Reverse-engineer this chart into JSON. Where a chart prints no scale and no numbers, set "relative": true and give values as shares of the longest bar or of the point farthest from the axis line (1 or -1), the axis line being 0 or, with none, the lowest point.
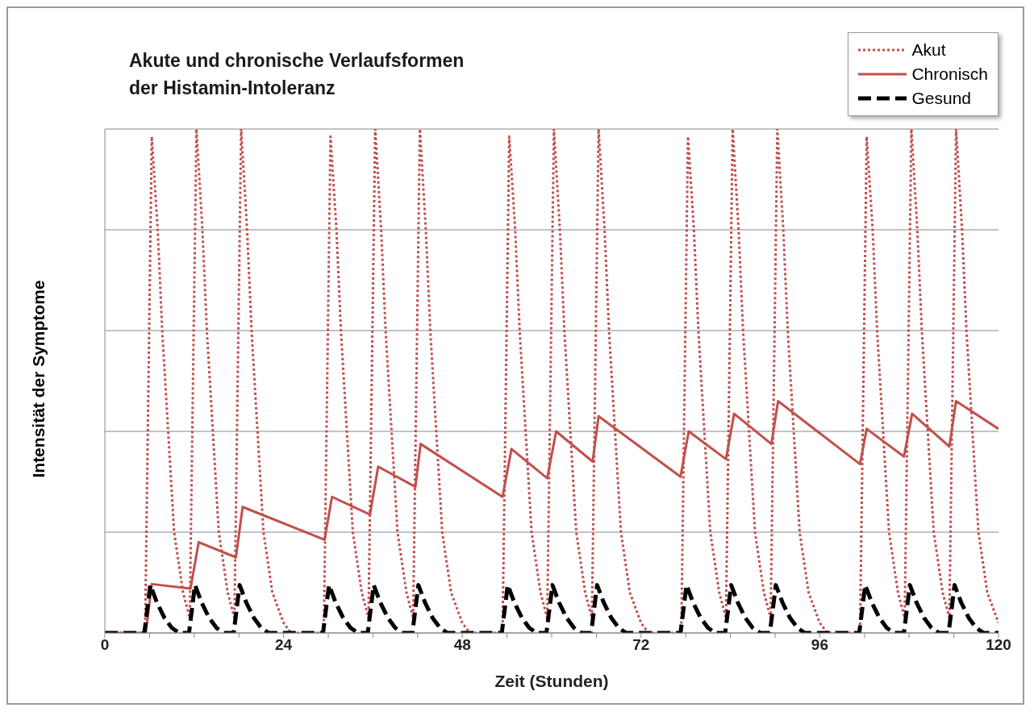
{
  "chart_data": {
    "type": "line",
    "title": "Akute und chronische Verlaufsformen der Histamin-Intoleranz",
    "xlabel": "Zeit (Stunden)",
    "ylabel": "Intensität der Symptome",
    "relative": true,
    "grid": "y",
    "legend": "top right",
    "xlim": [
      0,
      120
    ],
    "xticks": [
      0,
      {
        "value": 6,
        "label": null
      },
      {
        "value": 12,
        "label": null
      },
      {
        "value": 18,
        "label": null
      },
      24,
      {
        "value": 30,
        "label": null
      },
      {
        "value": 36,
        "label": null
      },
      {
        "value": 42,
        "label": null
      },
      48,
      {
        "value": 54,
        "label": null
      },
      {
        "value": 60,
        "label": null
      },
      {
        "value": 66,
        "label": null
      },
      72,
      {
        "value": 78,
        "label": null
      },
      {
        "value": 84,
        "label": null
      },
      {
        "value": 90,
        "label": null
      },
      96,
      {
        "value": 102,
        "label": null
      },
      {
        "value": 108,
        "label": null
      },
      {
        "value": 114,
        "label": null
      },
      120
    ],
    "series": [
      {
        "name": "Akut",
        "color": "#c0504d",
        "line_style": "dotted",
        "x": [
          0,
          5.4,
          6.3,
          7.1,
          7.7,
          8.5,
          9.3,
          10.5,
          11.4,
          12.3,
          13.1,
          13.7,
          14.5,
          15.3,
          16.5,
          17.4,
          18.3,
          19.1,
          19.7,
          20.5,
          21.3,
          22.5,
          24,
          25,
          29.4,
          30.3,
          31.1,
          31.7,
          32.5,
          33.3,
          34.5,
          35.4,
          36.3,
          37.1,
          37.7,
          38.5,
          39.3,
          40.5,
          41.4,
          42.3,
          43.1,
          43.7,
          44.5,
          45.3,
          46.5,
          48,
          49,
          53.4,
          54.3,
          55.1,
          55.7,
          56.5,
          57.3,
          58.5,
          59.4,
          60.3,
          61.1,
          61.7,
          62.5,
          63.3,
          64.5,
          65.4,
          66.3,
          67.1,
          67.7,
          68.5,
          69.3,
          70.5,
          72,
          73,
          77.4,
          78.3,
          79.1,
          79.7,
          80.5,
          81.3,
          82.5,
          83.4,
          84.3,
          85.1,
          85.7,
          86.5,
          87.3,
          88.5,
          89.4,
          90.3,
          91.1,
          91.7,
          92.5,
          93.3,
          94.5,
          96,
          97,
          101.4,
          102.3,
          103.1,
          103.7,
          104.5,
          105.3,
          106.5,
          107.4,
          108.3,
          109.1,
          109.7,
          110.5,
          111.3,
          112.5,
          113.4,
          114.3,
          115.1,
          115.7,
          116.5,
          117.3,
          118.5,
          120
        ],
        "values": [
          0,
          0,
          0.985,
          0.8,
          0.6,
          0.4,
          0.2,
          0.08,
          0.03,
          1,
          0.8,
          0.6,
          0.4,
          0.2,
          0.08,
          0.03,
          1,
          0.8,
          0.6,
          0.4,
          0.2,
          0.08,
          0.02,
          0,
          0,
          0.985,
          0.8,
          0.6,
          0.4,
          0.2,
          0.08,
          0.03,
          1,
          0.8,
          0.6,
          0.4,
          0.2,
          0.08,
          0.03,
          1,
          0.8,
          0.6,
          0.4,
          0.2,
          0.08,
          0.02,
          0,
          0,
          0.985,
          0.8,
          0.6,
          0.4,
          0.2,
          0.08,
          0.03,
          1,
          0.8,
          0.6,
          0.4,
          0.2,
          0.08,
          0.03,
          1,
          0.8,
          0.6,
          0.4,
          0.2,
          0.08,
          0.02,
          0,
          0,
          0.985,
          0.8,
          0.6,
          0.4,
          0.2,
          0.08,
          0.03,
          1,
          0.8,
          0.6,
          0.4,
          0.2,
          0.08,
          0.03,
          1,
          0.8,
          0.6,
          0.4,
          0.2,
          0.08,
          0.02,
          0,
          0,
          0.985,
          0.8,
          0.6,
          0.4,
          0.2,
          0.08,
          0.03,
          1,
          0.8,
          0.6,
          0.4,
          0.2,
          0.08,
          0.03,
          1,
          0.8,
          0.6,
          0.4,
          0.2,
          0.08,
          0.02
        ]
      },
      {
        "name": "Chronisch",
        "color": "#c0504d",
        "line_style": "solid",
        "x": [
          0,
          5.5,
          6.3,
          11.5,
          12.6,
          17.6,
          18.5,
          29.5,
          30.5,
          35.6,
          36.7,
          41.7,
          42.4,
          53.4,
          54.6,
          59.4,
          60.6,
          65.5,
          66.3,
          77.3,
          78.4,
          83.4,
          84.5,
          89.5,
          90.4,
          101.4,
          102.3,
          107.3,
          108.4,
          113.4,
          114.3,
          120
        ],
        "values": [
          0,
          0,
          0.097,
          0.088,
          0.18,
          0.15,
          0.25,
          0.185,
          0.27,
          0.235,
          0.33,
          0.29,
          0.375,
          0.27,
          0.365,
          0.307,
          0.4,
          0.34,
          0.43,
          0.31,
          0.4,
          0.345,
          0.435,
          0.375,
          0.46,
          0.335,
          0.405,
          0.35,
          0.435,
          0.37,
          0.46,
          0.405
        ]
      },
      {
        "name": "Gesund",
        "color": "#000000",
        "line_style": "dashed",
        "x": [
          0,
          5.3,
          6.1,
          7,
          8,
          9,
          10,
          11.3,
          12.1,
          13,
          14,
          15,
          16,
          17.3,
          18.1,
          19,
          20,
          21,
          22,
          29.3,
          30.1,
          31,
          32,
          33,
          34,
          35.3,
          36.1,
          37,
          38,
          39,
          40,
          41.3,
          42.1,
          43,
          44,
          45,
          46,
          53.3,
          54.1,
          55,
          56,
          57,
          58,
          59.3,
          60.1,
          61,
          62,
          63,
          64,
          65.3,
          66.1,
          67,
          68,
          69,
          70,
          77.3,
          78.1,
          79,
          80,
          81,
          82,
          83.3,
          84.1,
          85,
          86,
          87,
          88,
          89.3,
          90.1,
          91,
          92,
          93,
          94,
          101.3,
          102.1,
          103,
          104,
          105,
          106,
          107.3,
          108.1,
          109,
          110,
          111,
          112,
          113.3,
          114.1,
          115,
          116,
          117,
          118,
          120
        ],
        "values": [
          0,
          0,
          0.095,
          0.06,
          0.03,
          0.01,
          0,
          0,
          0.095,
          0.06,
          0.03,
          0.01,
          0,
          0,
          0.095,
          0.06,
          0.03,
          0.01,
          0,
          0,
          0.095,
          0.06,
          0.03,
          0.01,
          0,
          0,
          0.095,
          0.06,
          0.03,
          0.01,
          0,
          0,
          0.095,
          0.06,
          0.03,
          0.01,
          0,
          0,
          0.095,
          0.06,
          0.03,
          0.01,
          0,
          0,
          0.095,
          0.06,
          0.03,
          0.01,
          0,
          0,
          0.095,
          0.06,
          0.03,
          0.01,
          0,
          0,
          0.095,
          0.06,
          0.03,
          0.01,
          0,
          0,
          0.095,
          0.06,
          0.03,
          0.01,
          0,
          0,
          0.095,
          0.06,
          0.03,
          0.01,
          0,
          0,
          0.095,
          0.06,
          0.03,
          0.01,
          0,
          0,
          0.095,
          0.06,
          0.03,
          0.01,
          0,
          0,
          0.095,
          0.06,
          0.03,
          0.01,
          0,
          0
        ]
      }
    ]
  }
}
